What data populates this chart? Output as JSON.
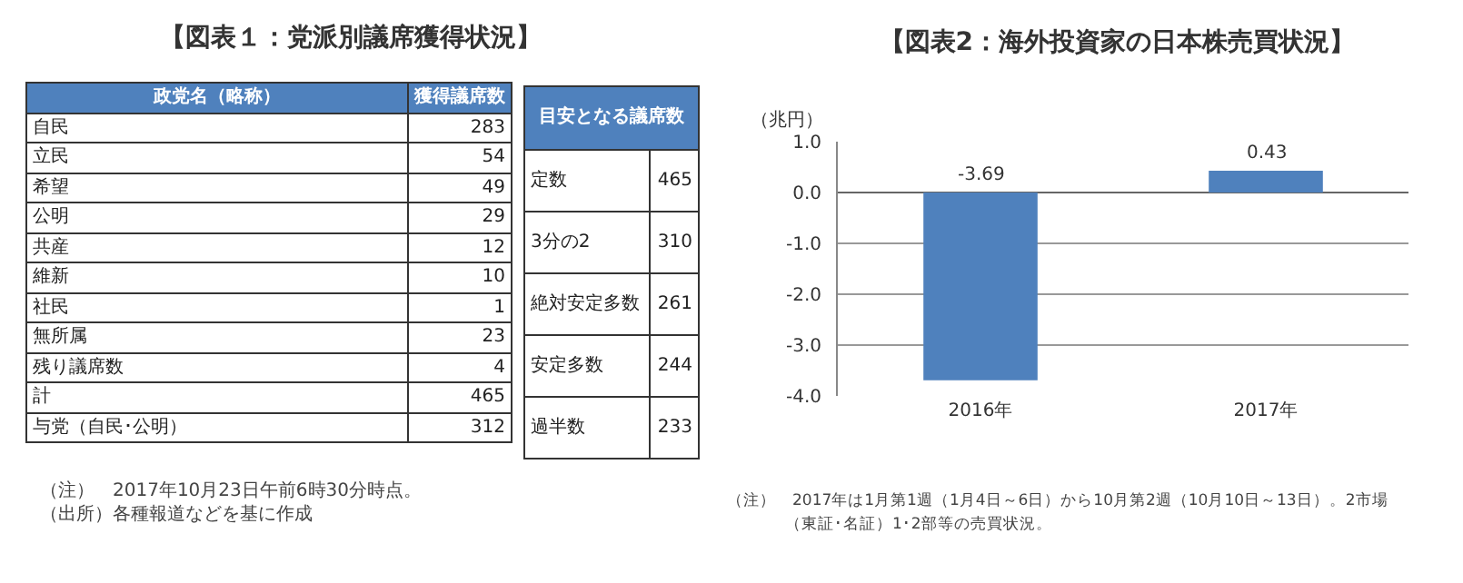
{
  "chart_data": [
    {
      "type": "other",
      "title": "【図表１：党派別議席獲得状況】",
      "categories": [
        "自民",
        "立民",
        "希望",
        "公明",
        "共産",
        "維新",
        "社民",
        "無所属",
        "残り議席数",
        "計",
        "与党（自民･公明）"
      ],
      "values": [
        283,
        54,
        49,
        29,
        12,
        10,
        1,
        23,
        4,
        465,
        312
      ],
      "color": "#4f81bd",
      "data_labels": true,
      "annotations": [
        "政党名（略称）",
        "獲得議席数",
        "（注）　2017年10月23日午前6時30分時点。",
        "（出所）各種報道などを基に作成"
      ]
    },
    {
      "type": "other",
      "title": "目安となる議席数",
      "categories": [
        "定数",
        "3分の2",
        "絶対安定多数",
        "安定多数",
        "過半数"
      ],
      "values": [
        465,
        310,
        261,
        244,
        233
      ],
      "color": "#4f81bd",
      "data_labels": true
    },
    {
      "type": "bar",
      "title": "【図表2：海外投資家の日本株売買状況】",
      "ylabel": "（兆円）",
      "categories": [
        "2016年",
        "2017年"
      ],
      "values": [
        -3.69,
        0.43
      ],
      "color": "#4f81bd",
      "ylim": [
        -4,
        1
      ],
      "yticks": [
        {
          "value": -4,
          "label": "-4.0"
        },
        {
          "value": -3,
          "label": "-3.0"
        },
        {
          "value": -2,
          "label": "-2.0"
        },
        {
          "value": -1,
          "label": "-1.0"
        },
        {
          "value": 0,
          "label": "0.0"
        },
        {
          "value": 1,
          "label": "1.0"
        }
      ],
      "grid": "y",
      "legend": false,
      "data_labels": true,
      "annotations": [
        "（注）　2017年は1月第1週（1月4日～6日）から10月第2週（10月10日～13日）。2市場",
        "（東証･名証）1･2部等の売買状況。"
      ]
    }
  ]
}
